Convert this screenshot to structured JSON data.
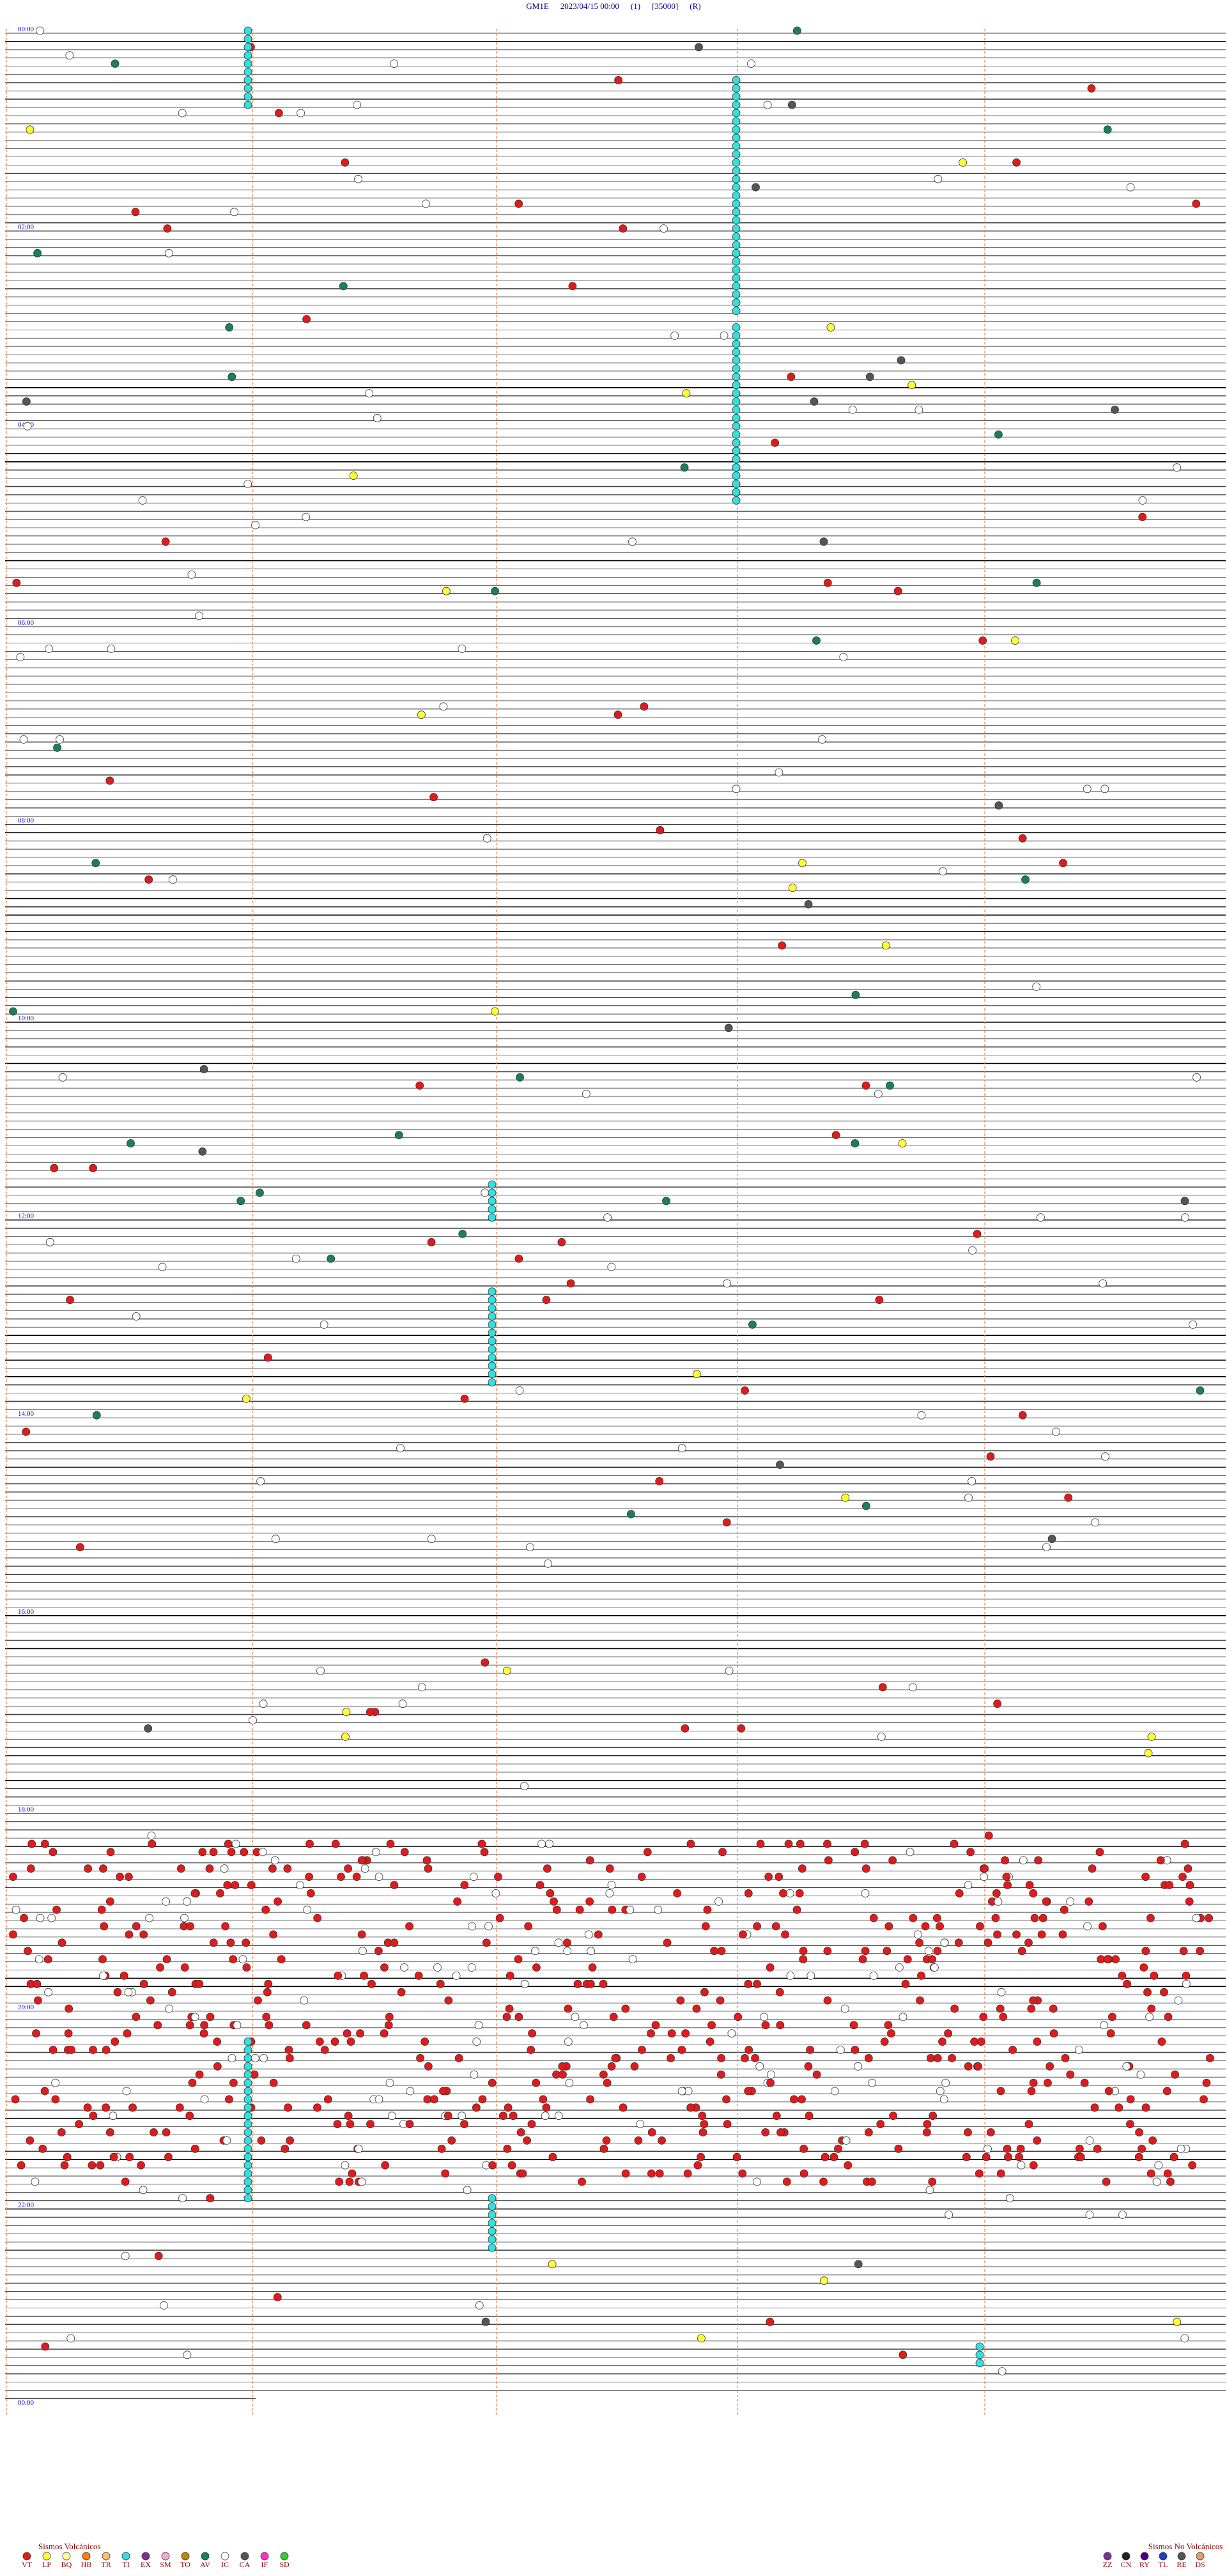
{
  "header": {
    "station": "GM1E",
    "datetime": "2023/04/15 00:00",
    "channel": "(1)",
    "gain": "[35000]",
    "mode": "(R)"
  },
  "time_labels": [
    "00:00",
    "02:00",
    "04:00",
    "06:00",
    "08:00",
    "10:00",
    "12:00",
    "14:00",
    "16:00",
    "18:00",
    "20:00",
    "22:00",
    "00:00"
  ],
  "legend_volcanic": {
    "title": "Sismos Volcánicos",
    "items": [
      {
        "code": "VT",
        "color": "#e31a1c"
      },
      {
        "code": "LP",
        "color": "#ffff33"
      },
      {
        "code": "BQ",
        "color": "#ffff99"
      },
      {
        "code": "HB",
        "color": "#ff7f00"
      },
      {
        "code": "TR",
        "color": "#fdbf6f"
      },
      {
        "code": "TI",
        "color": "#33e0e0"
      },
      {
        "code": "EX",
        "color": "#7b3294"
      },
      {
        "code": "SM",
        "color": "#f4a6d7"
      },
      {
        "code": "TO",
        "color": "#b8860b"
      },
      {
        "code": "AV",
        "color": "#1b7f5f"
      },
      {
        "code": "IC",
        "color": "#ffffff"
      },
      {
        "code": "CA",
        "color": "#555555"
      },
      {
        "code": "IF",
        "color": "#ff33cc"
      },
      {
        "code": "SD",
        "color": "#33cc33"
      }
    ]
  },
  "legend_nonvolcanic": {
    "title": "Sismos No Volcánicos",
    "items": [
      {
        "code": "ZZ",
        "color": "#7b3294"
      },
      {
        "code": "CN",
        "color": "#222222"
      },
      {
        "code": "RY",
        "color": "#4b0082"
      },
      {
        "code": "TL",
        "color": "#1f3fbf"
      },
      {
        "code": "RE",
        "color": "#555555"
      },
      {
        "code": "DS",
        "color": "#d8a070"
      }
    ]
  }
}
